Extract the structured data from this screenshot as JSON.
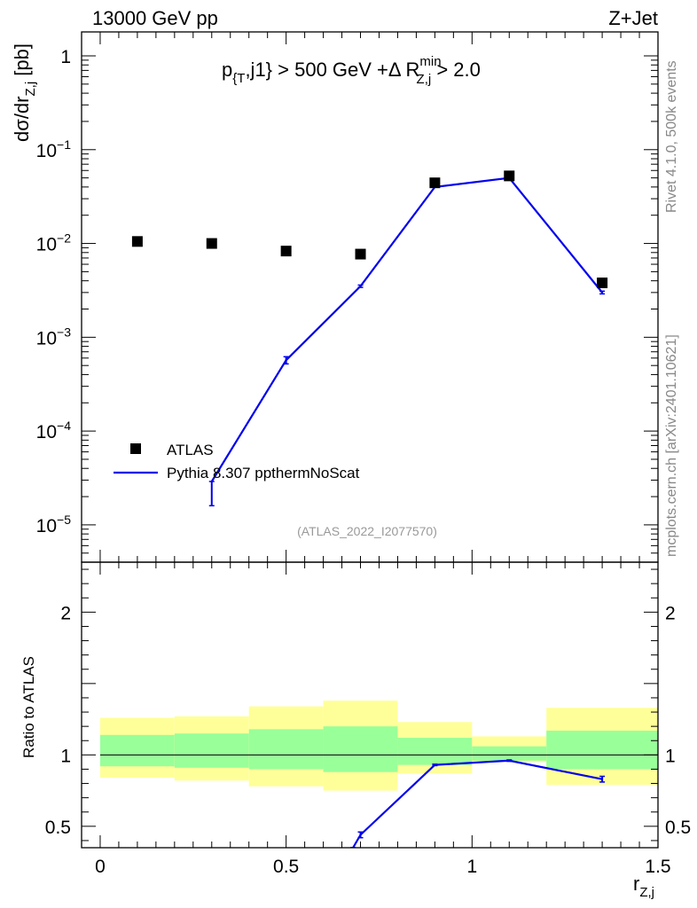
{
  "header": {
    "left_title": "13000 GeV pp",
    "right_title": "Z+Jet"
  },
  "cut_label": {
    "p": "p",
    "p_sub": "{T",
    "mid": ",j1} > 500 GeV +Δ R",
    "r_sup": "min",
    "r_sub": "Z,j",
    "tail": " > 2.0"
  },
  "side_labels": {
    "rivet": "Rivet 4.1.0,  500k events",
    "mcplots": "mcplots.cern.ch [arXiv:2401.10621]"
  },
  "analysis_id": "(ATLAS_2022_I2077570)",
  "y_label_top": {
    "main": "dσ/dr",
    "sub": "Z,j",
    "unit": " [pb]"
  },
  "y_label_bottom": "Ratio to ATLAS",
  "x_label": {
    "main": "r",
    "sub": "Z,j"
  },
  "colors": {
    "data": "#000000",
    "mc": "#0000ee",
    "band_inner": "#99ff99",
    "band_outer": "#ffff99",
    "analysis_id": "#999999",
    "side_text": "#888888"
  },
  "chart_data": {
    "type": "scatter",
    "x_range": [
      -0.05,
      1.5
    ],
    "main_panel": {
      "y_scale": "log",
      "y_range": [
        4e-06,
        1.8
      ],
      "y_ticks": [
        {
          "value": 1,
          "base": "1",
          "exp": ""
        },
        {
          "value": 0.1,
          "base": "10",
          "exp": "−1"
        },
        {
          "value": 0.01,
          "base": "10",
          "exp": "−2"
        },
        {
          "value": 0.001,
          "base": "10",
          "exp": "−3"
        },
        {
          "value": 0.0001,
          "base": "10",
          "exp": "−4"
        },
        {
          "value": 1e-05,
          "base": "10",
          "exp": "−5"
        }
      ],
      "legend": {
        "position": "bottom-left",
        "entries": [
          {
            "key": "data",
            "label": "ATLAS"
          },
          {
            "key": "mc",
            "label": "Pythia 8.307 ppthermNoScat"
          }
        ]
      },
      "series": [
        {
          "name": "ATLAS",
          "style": "markers",
          "points": [
            {
              "x": 0.1,
              "y": 0.0105
            },
            {
              "x": 0.3,
              "y": 0.01
            },
            {
              "x": 0.5,
              "y": 0.0083
            },
            {
              "x": 0.7,
              "y": 0.0077
            },
            {
              "x": 0.9,
              "y": 0.0443
            },
            {
              "x": 1.1,
              "y": 0.0525
            },
            {
              "x": 1.35,
              "y": 0.0038
            }
          ]
        },
        {
          "name": "Pythia 8.307 ppthermNoScat",
          "style": "line",
          "points": [
            {
              "x": 0.3,
              "y": 2.9e-05,
              "err_lo": 1.6e-05,
              "err_hi": 2.9e-05
            },
            {
              "x": 0.5,
              "y": 0.00057,
              "err_lo": 0.00052,
              "err_hi": 0.00062
            },
            {
              "x": 0.7,
              "y": 0.0035,
              "err_lo": 0.0034,
              "err_hi": 0.0036
            },
            {
              "x": 0.9,
              "y": 0.04,
              "err_lo": 0.04,
              "err_hi": 0.04
            },
            {
              "x": 1.1,
              "y": 0.05,
              "err_lo": 0.05,
              "err_hi": 0.05
            },
            {
              "x": 1.35,
              "y": 0.003,
              "err_lo": 0.0029,
              "err_hi": 0.0031
            }
          ]
        }
      ]
    },
    "ratio_panel": {
      "y_scale": "linear",
      "y_range": [
        0.35,
        2.35
      ],
      "y_ticks": [
        0.5,
        1,
        2
      ],
      "y_tick_labels": [
        "0.5",
        "1",
        "2"
      ],
      "bins": [
        {
          "lo": 0.0,
          "hi": 0.2,
          "inner": [
            0.92,
            1.14
          ],
          "outer": [
            0.84,
            1.26
          ]
        },
        {
          "lo": 0.2,
          "hi": 0.4,
          "inner": [
            0.91,
            1.15
          ],
          "outer": [
            0.82,
            1.27
          ]
        },
        {
          "lo": 0.4,
          "hi": 0.6,
          "inner": [
            0.9,
            1.18
          ],
          "outer": [
            0.78,
            1.34
          ]
        },
        {
          "lo": 0.6,
          "hi": 0.8,
          "inner": [
            0.88,
            1.2
          ],
          "outer": [
            0.75,
            1.38
          ]
        },
        {
          "lo": 0.8,
          "hi": 1.0,
          "inner": [
            0.93,
            1.12
          ],
          "outer": [
            0.87,
            1.23
          ]
        },
        {
          "lo": 1.0,
          "hi": 1.2,
          "inner": [
            0.96,
            1.06
          ],
          "outer": [
            0.95,
            1.13
          ]
        },
        {
          "lo": 1.2,
          "hi": 1.5,
          "inner": [
            0.9,
            1.17
          ],
          "outer": [
            0.79,
            1.33
          ]
        }
      ],
      "mc_ratio": [
        {
          "x": 0.68,
          "y": 0.35,
          "err_lo": 0.35,
          "err_hi": 0.35
        },
        {
          "x": 0.7,
          "y": 0.44,
          "err_lo": 0.42,
          "err_hi": 0.46
        },
        {
          "x": 0.9,
          "y": 0.93,
          "err_lo": 0.925,
          "err_hi": 0.935
        },
        {
          "x": 1.1,
          "y": 0.96,
          "err_lo": 0.955,
          "err_hi": 0.965
        },
        {
          "x": 1.35,
          "y": 0.83,
          "err_lo": 0.81,
          "err_hi": 0.85
        }
      ]
    },
    "x_ticks": [
      0,
      0.5,
      1,
      1.5
    ],
    "x_tick_labels": [
      "0",
      "0.5",
      "1",
      "1.5"
    ]
  }
}
